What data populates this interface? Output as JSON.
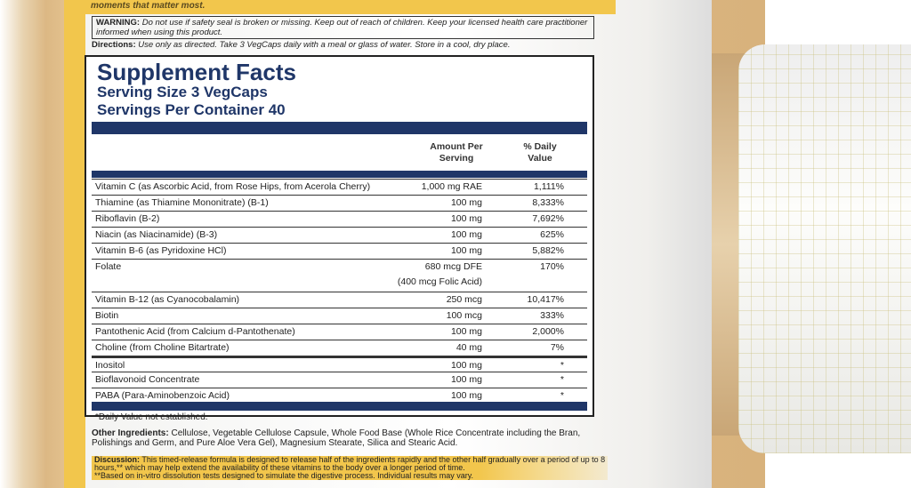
{
  "top_band": "moments that matter most.",
  "warning": {
    "label": "WARNING:",
    "text": " Do not use if safety seal is broken or missing. Keep out of reach of children. Keep your licensed health care practitioner informed when using this product."
  },
  "directions": {
    "label": "Directions:",
    "text": " Use only as directed. Take 3 VegCaps daily with a meal or glass of water. Store in a cool, dry place."
  },
  "facts": {
    "title": "Supplement Facts",
    "serving_size": "Serving Size 3 VegCaps",
    "servings_per_container": "Servings Per Container 40",
    "col_amount": "Amount Per Serving",
    "col_dv": "% Daily Value",
    "rows": [
      {
        "name": "Vitamin C (as Ascorbic Acid, from Rose Hips, from Acerola Cherry)",
        "amount": "1,000 mg RAE",
        "dv": "1,111%"
      },
      {
        "name": "Thiamine (as Thiamine Mononitrate) (B-1)",
        "amount": "100 mg",
        "dv": "8,333%"
      },
      {
        "name": "Riboflavin (B-2)",
        "amount": "100 mg",
        "dv": "7,692%"
      },
      {
        "name": "Niacin (as Niacinamide) (B-3)",
        "amount": "100 mg",
        "dv": "625%"
      },
      {
        "name": "Vitamin B-6 (as Pyridoxine HCl)",
        "amount": "100 mg",
        "dv": "5,882%"
      },
      {
        "name": "Folate",
        "amount": "680 mcg DFE",
        "amount2": "(400 mcg Folic Acid)",
        "dv": "170%"
      },
      {
        "name": "Vitamin B-12 (as Cyanocobalamin)",
        "amount": "250 mcg",
        "dv": "10,417%"
      },
      {
        "name": "Biotin",
        "amount": "100 mcg",
        "dv": "333%"
      },
      {
        "name": "Pantothenic Acid (from Calcium d-Pantothenate)",
        "amount": "100 mg",
        "dv": "2,000%"
      },
      {
        "name": "Choline (from Choline Bitartrate)",
        "amount": "40 mg",
        "dv": "7%"
      },
      {
        "name": "Inositol",
        "amount": "100 mg",
        "dv": "*"
      },
      {
        "name": "Bioflavonoid Concentrate",
        "amount": "100 mg",
        "dv": "*"
      },
      {
        "name": "PABA (Para-Aminobenzoic Acid)",
        "amount": "100 mg",
        "dv": "*"
      }
    ],
    "footnote": "*Daily Value not established."
  },
  "other_ingredients": {
    "label": "Other Ingredients:",
    "text": " Cellulose, Vegetable Cellulose Capsule, Whole Food Base (Whole Rice Concentrate including the Bran, Polishings and Germ, and Pure Aloe Vera Gel), Magnesium Stearate, Silica and Stearic Acid."
  },
  "discussion": {
    "label": "Discussion:",
    "text": " This timed-release formula is designed to release half of the ingredients rapidly and the other half gradually over a period of up to 8 hours,** which may help extend the availability of these vitamins to the body over a longer period of time.",
    "note": "**Based on in-vitro dissolution tests designed to simulate the digestive process. Individual results may vary."
  }
}
